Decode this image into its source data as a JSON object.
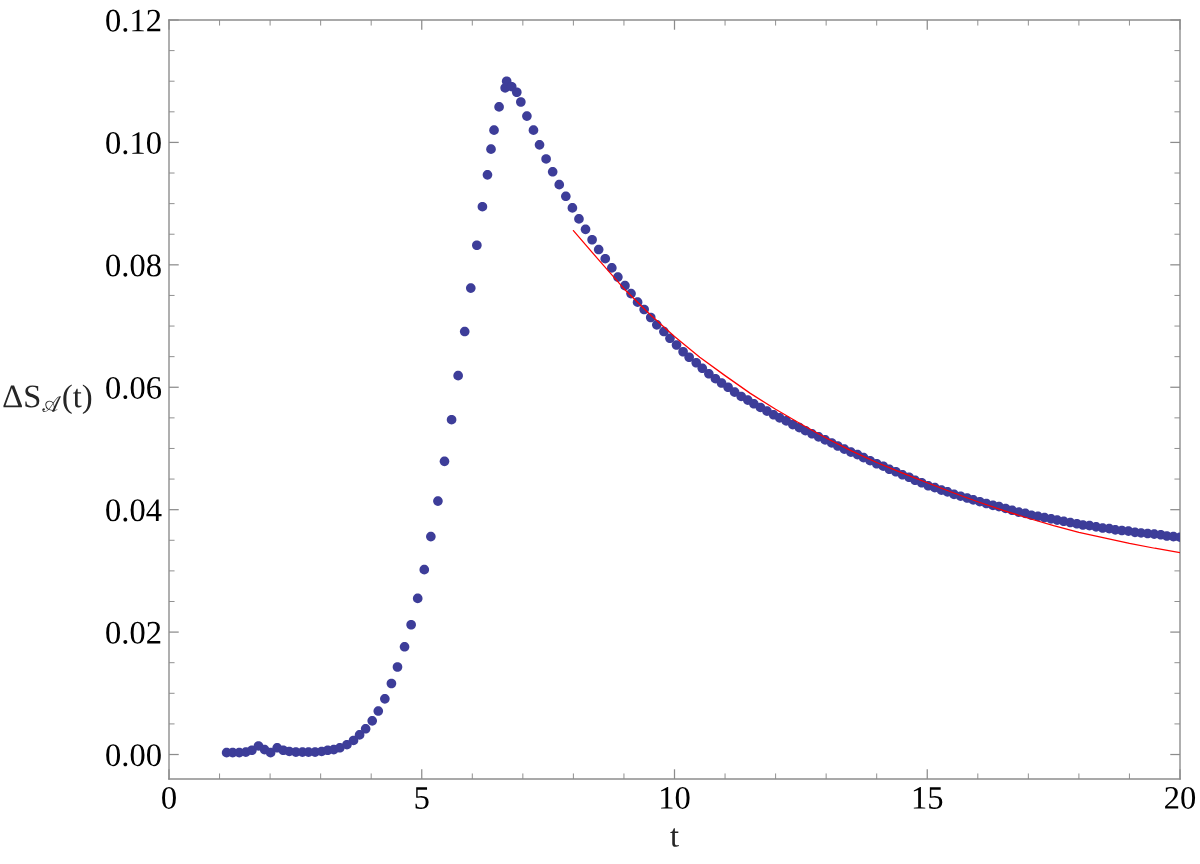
{
  "chart_data": {
    "type": "scatter",
    "xlabel": "t",
    "ylabel": "ΔS$_{𝒜}$(t)",
    "xlim": [
      0,
      20
    ],
    "xticks": [
      0,
      5,
      10,
      15,
      20
    ],
    "ylim": [
      -0.004,
      0.12
    ],
    "yticks": [
      {
        "value": 0,
        "label": "0.00"
      },
      {
        "value": 0.02,
        "label": "0.02"
      },
      {
        "value": 0.04,
        "label": "0.04"
      },
      {
        "value": 0.06,
        "label": "0.06"
      },
      {
        "value": 0.08,
        "label": "0.08"
      },
      {
        "value": 0.1,
        "label": "0.10"
      },
      {
        "value": 0.12,
        "label": "0.12"
      }
    ],
    "grid": false,
    "series": [
      {
        "marker": "circle",
        "color": "#3d3d99",
        "x": [
          1.14,
          1.26,
          1.39,
          1.52,
          1.64,
          1.77,
          1.89,
          2.01,
          2.14,
          2.26,
          2.38,
          2.51,
          2.64,
          2.76,
          2.89,
          3.02,
          3.14,
          3.26,
          3.38,
          3.52,
          3.65,
          3.77,
          3.89,
          4.02,
          4.14,
          4.27,
          4.4,
          4.52,
          4.66,
          4.79,
          4.92,
          5.05,
          5.18,
          5.32,
          5.45,
          5.59,
          5.72,
          5.85,
          5.97,
          6.09,
          6.2,
          6.3,
          6.37,
          6.43,
          6.53,
          6.65,
          6.68,
          6.78,
          6.88,
          6.96,
          7.08,
          7.21,
          7.33,
          7.46,
          7.59,
          7.72,
          7.85,
          7.98,
          8.11,
          8.24,
          8.37,
          8.5,
          8.63,
          8.76,
          8.88,
          9.02,
          9.14,
          9.27,
          9.4,
          9.53,
          9.65,
          9.79,
          9.91,
          10.04,
          10.17,
          10.29,
          10.43,
          10.55,
          10.68,
          10.81,
          10.93,
          11.06,
          11.19,
          11.32,
          11.45,
          11.57,
          11.7,
          11.83,
          11.96,
          12.08,
          12.21,
          12.34,
          12.47,
          12.59,
          12.72,
          12.85,
          12.98,
          13.11,
          13.23,
          13.36,
          13.49,
          13.62,
          13.74,
          13.87,
          14.0,
          14.13,
          14.25,
          14.38,
          14.51,
          14.64,
          14.76,
          14.89,
          15.02,
          15.15,
          15.28,
          15.4,
          15.53,
          15.66,
          15.79,
          15.91,
          16.04,
          16.17,
          16.3,
          16.42,
          16.55,
          16.68,
          16.81,
          16.94,
          17.06,
          17.19,
          17.32,
          17.45,
          17.57,
          17.7,
          17.83,
          17.96,
          18.08,
          18.21,
          18.34,
          18.47,
          18.6,
          18.72,
          18.85,
          18.98,
          19.11,
          19.23,
          19.36,
          19.49,
          19.62,
          19.74,
          19.87,
          20
        ],
        "values": [
          0.0003,
          0.0003,
          0.0003,
          0.0004,
          0.0007,
          0.0014,
          0.0008,
          0.0003,
          0.0011,
          0.0007,
          0.0005,
          0.0004,
          0.0004,
          0.0004,
          0.0004,
          0.0005,
          0.0007,
          0.0008,
          0.0011,
          0.0016,
          0.0023,
          0.0032,
          0.0042,
          0.0055,
          0.0071,
          0.0091,
          0.0116,
          0.0143,
          0.0176,
          0.0212,
          0.0255,
          0.0302,
          0.0356,
          0.0414,
          0.0479,
          0.0547,
          0.0619,
          0.0691,
          0.0762,
          0.0832,
          0.0895,
          0.0947,
          0.0989,
          0.102,
          0.1058,
          0.1089,
          0.11,
          0.1091,
          0.1082,
          0.1066,
          0.1043,
          0.102,
          0.0996,
          0.0973,
          0.0952,
          0.0931,
          0.0912,
          0.0893,
          0.0875,
          0.0858,
          0.0841,
          0.0825,
          0.081,
          0.0795,
          0.078,
          0.0766,
          0.0753,
          0.0739,
          0.0727,
          0.0714,
          0.0702,
          0.0691,
          0.068,
          0.0669,
          0.0658,
          0.0649,
          0.064,
          0.0631,
          0.0622,
          0.0614,
          0.0607,
          0.06,
          0.0592,
          0.0585,
          0.0579,
          0.0573,
          0.0567,
          0.0561,
          0.0555,
          0.055,
          0.0545,
          0.0539,
          0.0534,
          0.0529,
          0.0524,
          0.0519,
          0.0514,
          0.0509,
          0.0504,
          0.0499,
          0.0494,
          0.049,
          0.0485,
          0.048,
          0.0475,
          0.0471,
          0.0466,
          0.0462,
          0.0457,
          0.0453,
          0.0448,
          0.0444,
          0.0439,
          0.0436,
          0.0432,
          0.0429,
          0.0425,
          0.0422,
          0.0419,
          0.0416,
          0.0413,
          0.041,
          0.0407,
          0.0405,
          0.0402,
          0.0399,
          0.0396,
          0.0394,
          0.0391,
          0.0389,
          0.0387,
          0.0385,
          0.0383,
          0.0381,
          0.0379,
          0.0377,
          0.0375,
          0.0374,
          0.0372,
          0.037,
          0.0369,
          0.0367,
          0.0366,
          0.0365,
          0.0363,
          0.0362,
          0.0361,
          0.036,
          0.0359,
          0.0357,
          0.0356,
          0.0355
        ]
      },
      {
        "type": "line",
        "line_style": "solid",
        "color": "#ff0000",
        "x": [
          8,
          8.5,
          9,
          9.5,
          10,
          10.5,
          11,
          11.5,
          12,
          12.5,
          13,
          13.5,
          14,
          14.5,
          15,
          15.5,
          16,
          16.5,
          17,
          17.5,
          18,
          18.5,
          19,
          19.5,
          20
        ],
        "values": [
          0.0856,
          0.0808,
          0.0761,
          0.072,
          0.0683,
          0.0649,
          0.0619,
          0.059,
          0.0564,
          0.054,
          0.0517,
          0.0496,
          0.0477,
          0.046,
          0.0444,
          0.0428,
          0.0413,
          0.0399,
          0.0386,
          0.0374,
          0.0363,
          0.0354,
          0.0345,
          0.0337,
          0.033
        ]
      }
    ]
  }
}
